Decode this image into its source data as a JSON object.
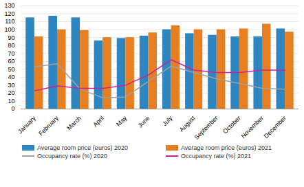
{
  "chart_data": {
    "type": "bar",
    "categories": [
      "January",
      "February",
      "March",
      "April",
      "May",
      "June",
      "July",
      "August",
      "September",
      "October",
      "November",
      "December"
    ],
    "series": [
      {
        "name": "Average room price (euros) 2020",
        "type": "bar",
        "color": "#2E86C1",
        "values": [
          115,
          117,
          115,
          86,
          89,
          92,
          100,
          95,
          93,
          91,
          91,
          101
        ]
      },
      {
        "name": "Average room price (euros) 2021",
        "type": "bar",
        "color": "#E67E22",
        "values": [
          91,
          100,
          99,
          90,
          90,
          96,
          105,
          100,
          100,
          101,
          107,
          97
        ]
      },
      {
        "name": "Occupancy rate (%) 2020",
        "type": "line",
        "color": "#A0A0A0",
        "values": [
          53,
          57,
          25,
          14,
          15,
          35,
          54,
          46,
          38,
          32,
          26,
          25
        ]
      },
      {
        "name": "Occupancy rate (%) 2021",
        "type": "line",
        "color": "#CC2299",
        "values": [
          23,
          29,
          26,
          26,
          30,
          43,
          62,
          49,
          46,
          46,
          49,
          49
        ]
      }
    ],
    "ylim": [
      0,
      130
    ],
    "yticks": [
      0,
      10,
      20,
      30,
      40,
      50,
      60,
      70,
      80,
      90,
      100,
      110,
      120,
      130
    ],
    "grid": true,
    "legend": "bottom"
  }
}
